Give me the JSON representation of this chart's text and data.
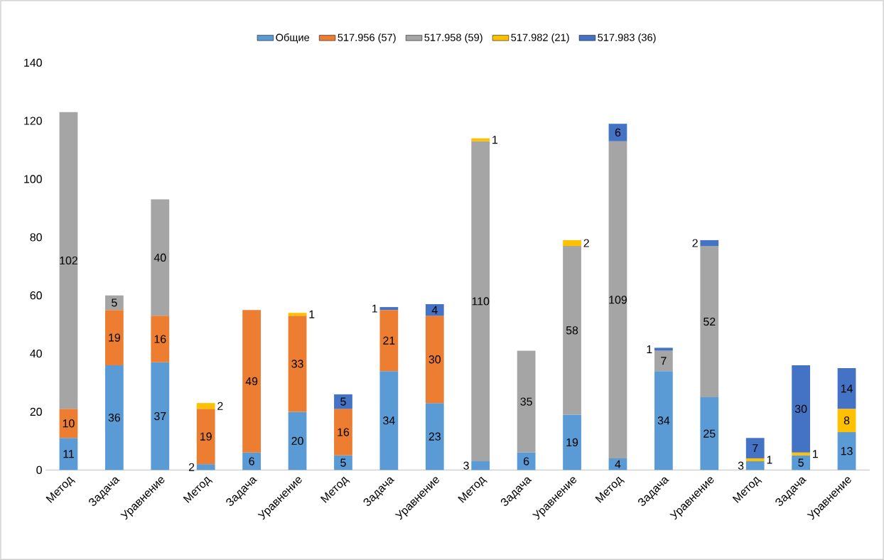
{
  "chart_data": {
    "type": "bar",
    "stacked": true,
    "data_labels": true,
    "legend": "top",
    "categories": [
      "Метод",
      "Задача",
      "Уравнение",
      "Метод",
      "Задача",
      "Уравнение",
      "Метод",
      "Задача",
      "Уравнение",
      "Метод",
      "Задача",
      "Уравнение",
      "Метод",
      "Задача",
      "Уравнение",
      "Метод",
      "Задача",
      "Уравнение"
    ],
    "series": [
      {
        "name": "Общие",
        "color": "#5b9bd5",
        "values": [
          11,
          36,
          37,
          2,
          6,
          20,
          5,
          34,
          23,
          3,
          6,
          19,
          4,
          34,
          25,
          3,
          5,
          13
        ]
      },
      {
        "name": "517.956 (57)",
        "color": "#ed7d31",
        "values": [
          10,
          19,
          16,
          19,
          49,
          33,
          16,
          21,
          30,
          null,
          null,
          null,
          null,
          null,
          null,
          null,
          null,
          null
        ]
      },
      {
        "name": "517.958 (59)",
        "color": "#a5a5a5",
        "values": [
          102,
          5,
          40,
          null,
          null,
          null,
          null,
          null,
          null,
          110,
          35,
          58,
          109,
          7,
          52,
          null,
          null,
          null
        ]
      },
      {
        "name": "517.982 (21)",
        "color": "#ffc000",
        "values": [
          null,
          null,
          null,
          2,
          null,
          1,
          null,
          null,
          null,
          1,
          null,
          2,
          null,
          null,
          null,
          1,
          1,
          8
        ]
      },
      {
        "name": "517.983 (36)",
        "color": "#4472c4",
        "values": [
          null,
          null,
          null,
          null,
          null,
          null,
          5,
          1,
          4,
          null,
          null,
          null,
          6,
          1,
          2,
          7,
          30,
          14
        ]
      }
    ],
    "ylim": [
      0,
      140
    ],
    "yticks": [
      0,
      20,
      40,
      60,
      80,
      100,
      120,
      140
    ]
  }
}
